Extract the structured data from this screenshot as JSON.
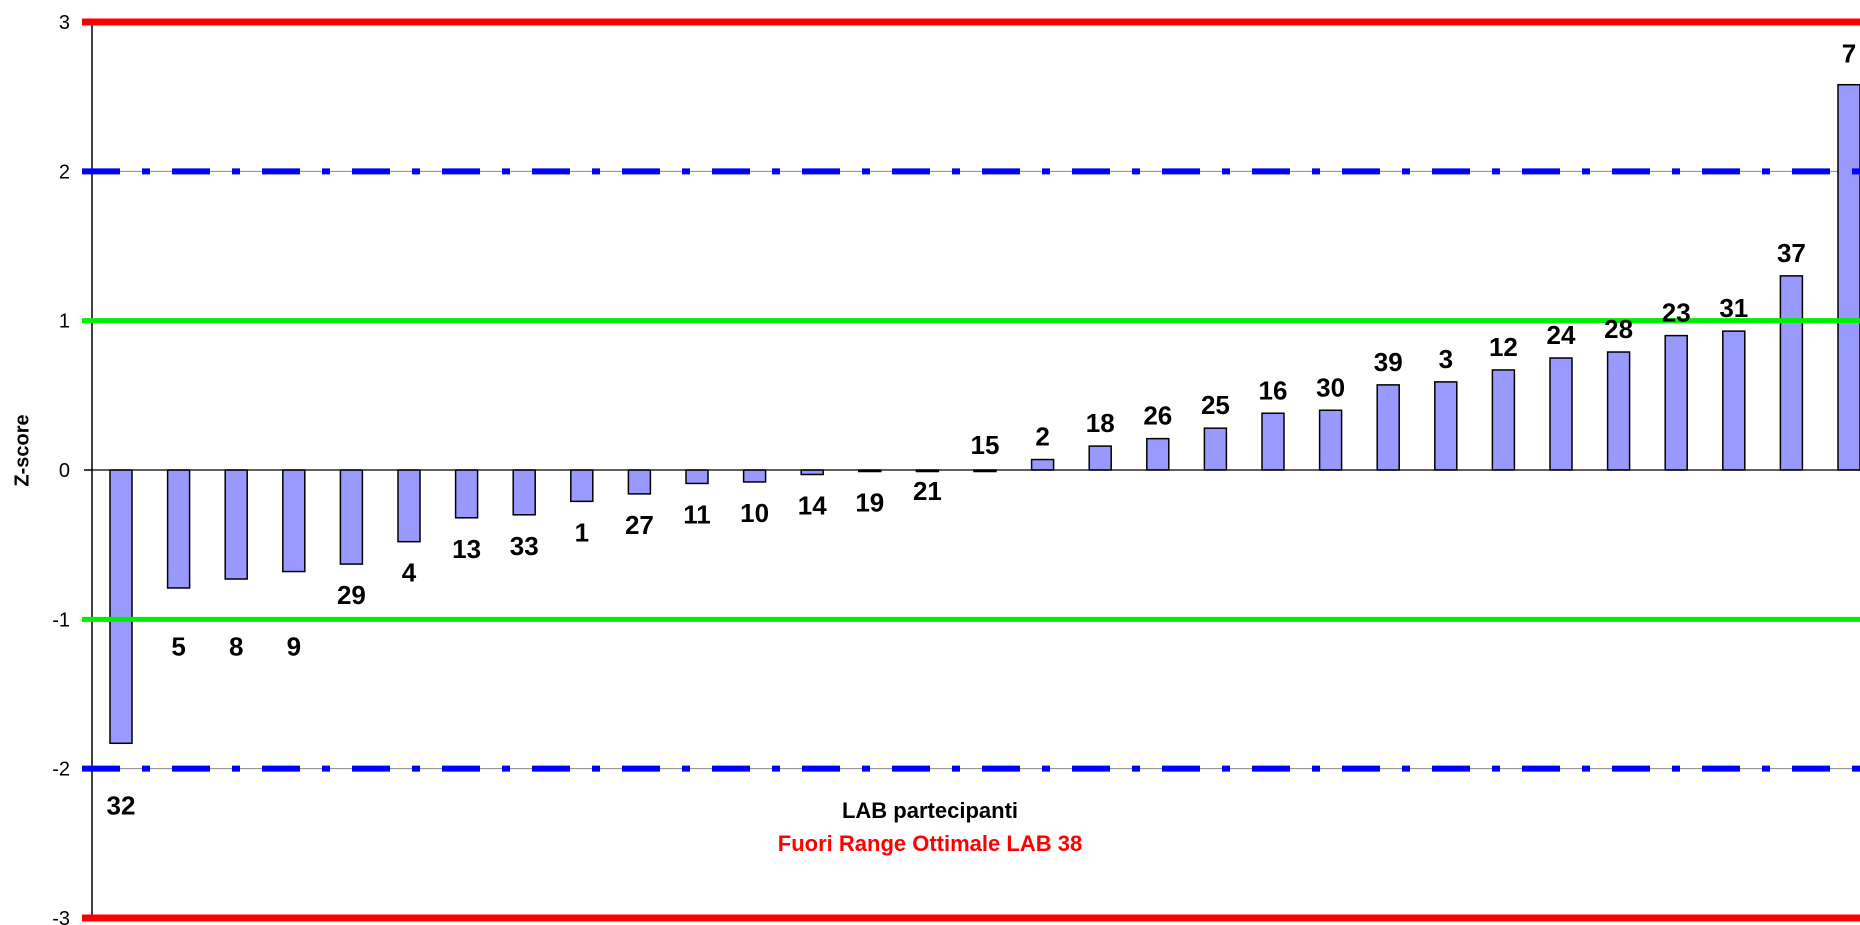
{
  "chart_data": {
    "type": "bar",
    "title": "",
    "ylabel": "Z-score",
    "xlabel": "LAB partecipanti",
    "note": "Fuori Range Ottimale LAB 38",
    "ylim": [
      -3,
      3
    ],
    "yticks": [
      "3",
      "2",
      "1",
      "0",
      "-1",
      "-2",
      "-3"
    ],
    "categories": [
      "32",
      "5",
      "8",
      "9",
      "29",
      "4",
      "13",
      "33",
      "1",
      "27",
      "11",
      "10",
      "14",
      "19",
      "21",
      "15",
      "2",
      "18",
      "26",
      "25",
      "16",
      "30",
      "39",
      "3",
      "12",
      "24",
      "28",
      "23",
      "31",
      "37",
      "7"
    ],
    "values": [
      -1.83,
      -0.79,
      -0.73,
      -0.68,
      -0.63,
      -0.48,
      -0.32,
      -0.3,
      -0.21,
      -0.16,
      -0.09,
      -0.08,
      -0.03,
      -0.01,
      0.0,
      0.0,
      0.07,
      0.16,
      0.21,
      0.28,
      0.38,
      0.4,
      0.57,
      0.59,
      0.67,
      0.75,
      0.79,
      0.9,
      0.93,
      1.3,
      2.58
    ],
    "reference_lines": [
      {
        "value": 3,
        "style": "solid",
        "color": "#ff0000"
      },
      {
        "value": -3,
        "style": "solid",
        "color": "#ff0000"
      },
      {
        "value": 2,
        "style": "dash-dot",
        "color": "#0000ff"
      },
      {
        "value": -2,
        "style": "dash-dot",
        "color": "#0000ff"
      },
      {
        "value": 1,
        "style": "solid",
        "color": "#00ee00"
      },
      {
        "value": -1,
        "style": "solid",
        "color": "#00ee00"
      }
    ],
    "bar_color": "#9999ff",
    "note_color": "#ff0000",
    "grid": false,
    "legend": "none"
  }
}
